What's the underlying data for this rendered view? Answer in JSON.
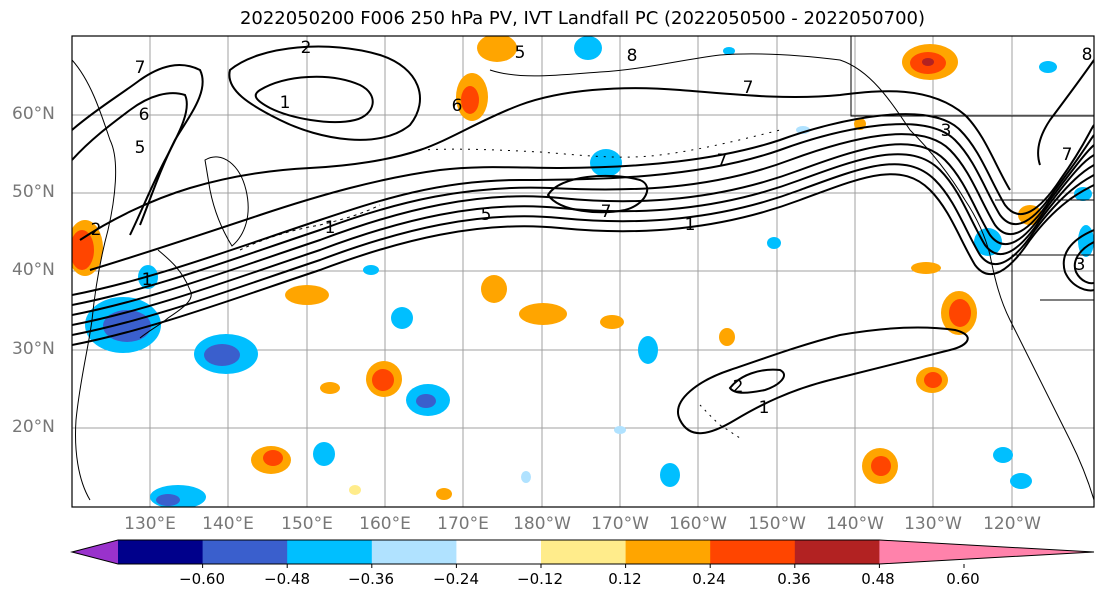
{
  "title": "2022050200 F006 250 hPa PV, IVT Landfall PC (2022050500 - 2022050700)",
  "lat_labels": [
    "60°N",
    "50°N",
    "40°N",
    "30°N",
    "20°N"
  ],
  "lon_labels": [
    "130°E",
    "140°E",
    "150°E",
    "160°E",
    "170°E",
    "180°W",
    "170°W",
    "160°W",
    "150°W",
    "140°W",
    "130°W",
    "120°W"
  ],
  "colorbar": {
    "colors": [
      "#9932CC",
      "#00008B",
      "#3A5FCD",
      "#00BFFF",
      "#B0E2FF",
      "#FFFFFF",
      "#FFEC8B",
      "#FFA500",
      "#FF4500",
      "#B22222",
      "#FF82AB"
    ],
    "tick_labels": [
      "−0.60",
      "−0.48",
      "−0.36",
      "−0.24",
      "−0.12",
      "0.12",
      "0.24",
      "0.36",
      "0.48",
      "0.60"
    ]
  },
  "pv_contour_labels": [
    "2",
    "1",
    "7",
    "6",
    "5",
    "2",
    "1",
    "1",
    "7",
    "5",
    "7",
    "7",
    "5",
    "6",
    "8",
    "3",
    "1",
    "7",
    "8",
    "2",
    "1",
    "3"
  ]
}
